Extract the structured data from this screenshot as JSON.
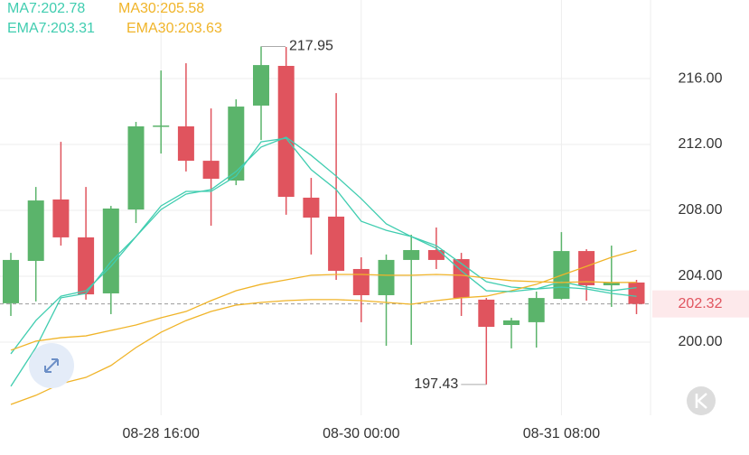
{
  "chart_data": {
    "type": "candlestick",
    "categories": [
      null,
      null,
      null,
      null,
      null,
      null,
      "08-28 16:00",
      null,
      null,
      null,
      null,
      null,
      null,
      null,
      "08-30 00:00",
      null,
      null,
      null,
      null,
      null,
      null,
      null,
      "08-31 08:00",
      null,
      null,
      null
    ],
    "open": [
      202.36,
      204.93,
      208.66,
      206.36,
      202.96,
      208.05,
      213.1,
      213.1,
      211.01,
      209.81,
      214.36,
      216.77,
      208.77,
      207.62,
      204.44,
      202.85,
      204.99,
      205.59,
      205.04,
      202.58,
      201.04,
      201.21,
      202.63,
      205.53,
      203.45,
      203.62
    ],
    "high": [
      205.42,
      209.42,
      212.16,
      209.42,
      208.27,
      213.37,
      216.49,
      216.93,
      214.19,
      214.74,
      217.95,
      217.92,
      209.97,
      215.12,
      205.15,
      205.32,
      206.52,
      206.96,
      205.42,
      202.68,
      201.48,
      203.07,
      206.68,
      205.64,
      205.86,
      203.78
    ],
    "low": [
      201.59,
      202.47,
      205.86,
      202.58,
      201.7,
      207.23,
      211.45,
      210.36,
      207.07,
      209.53,
      212.27,
      207.73,
      205.32,
      203.78,
      201.21,
      199.78,
      199.84,
      204.44,
      201.59,
      197.43,
      199.62,
      199.67,
      202.58,
      202.52,
      202.14,
      201.7
    ],
    "close": [
      204.99,
      208.6,
      206.36,
      202.9,
      208.11,
      213.1,
      213.15,
      211.01,
      209.92,
      214.3,
      216.82,
      208.82,
      207.56,
      204.33,
      202.85,
      204.99,
      205.59,
      204.99,
      202.68,
      200.93,
      201.32,
      202.68,
      205.53,
      203.45,
      203.62,
      202.32
    ],
    "up_color": "#5bb46b",
    "down_color": "#e0545e",
    "series": [
      {
        "name": "MA7:202.78",
        "color": "#40cdb0",
        "values": [
          199.29,
          201.31,
          202.79,
          203.12,
          204.6,
          206.41,
          208.05,
          208.99,
          209.26,
          210.36,
          211.84,
          212.44,
          211.34,
          210.08,
          208.71,
          207.18,
          206.41,
          205.86,
          204.77,
          203.67,
          203.34,
          203.23,
          203.34,
          203.23,
          202.96,
          202.78
        ]
      },
      {
        "name": "MA30:205.58",
        "color": "#f0b429",
        "values": [
          196.22,
          196.77,
          197.48,
          197.86,
          198.58,
          199.67,
          200.6,
          201.31,
          201.86,
          202.25,
          202.41,
          202.52,
          202.58,
          202.58,
          202.52,
          202.41,
          202.3,
          202.52,
          202.69,
          202.79,
          203.12,
          203.51,
          204.06,
          204.6,
          205.15,
          205.58
        ]
      },
      {
        "name": "EMA7:203.31",
        "color": "#40cdb0",
        "values": [
          197.32,
          199.67,
          202.69,
          202.96,
          204.88,
          206.41,
          208.27,
          209.15,
          209.15,
          210.08,
          212.16,
          212.38,
          210.47,
          209.26,
          207.34,
          206.79,
          206.41,
          205.7,
          204.33,
          203.12,
          203.07,
          203.23,
          203.67,
          203.34,
          203.12,
          203.31
        ]
      },
      {
        "name": "EMA30:203.63",
        "color": "#f0b429",
        "values": [
          199.51,
          200.06,
          200.27,
          200.38,
          200.71,
          201.04,
          201.48,
          201.86,
          202.52,
          203.12,
          203.51,
          203.78,
          204.06,
          204.11,
          204.11,
          204.06,
          204.06,
          204.11,
          204.06,
          203.89,
          203.73,
          203.67,
          203.62,
          203.67,
          203.62,
          203.63
        ]
      }
    ],
    "ylim": [
      195.56,
      220.77
    ],
    "yticks": [
      {
        "value": 200,
        "label": "200.00"
      },
      {
        "value": 204,
        "label": "204.00"
      },
      {
        "value": 208,
        "label": "208.00"
      },
      {
        "value": 212,
        "label": "212.00"
      },
      {
        "value": 216,
        "label": "216.00"
      }
    ],
    "grid": true
  }
}
